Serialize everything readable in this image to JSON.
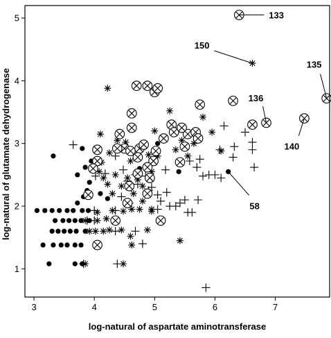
{
  "chart_data": {
    "type": "scatter",
    "title": "",
    "xlabel": "log-natural of aspartate aminotransferase",
    "ylabel": "log-natural of glutamate dehydrogenase",
    "xlim": [
      2.85,
      7.9
    ],
    "ylim": [
      0.55,
      5.2
    ],
    "xticks": [
      "3",
      "4",
      "5",
      "6",
      "7"
    ],
    "yticks": [
      "1",
      "2",
      "3",
      "4",
      "5"
    ],
    "grid": false,
    "legend": "none",
    "colors": {
      "marker": "#000000",
      "frame": "#000000",
      "background": "#ffffff"
    },
    "series": [
      {
        "marker": "dot",
        "points": [
          [
            3.05,
            1.93
          ],
          [
            3.18,
            1.93
          ],
          [
            3.3,
            1.93
          ],
          [
            3.42,
            1.93
          ],
          [
            3.55,
            1.93
          ],
          [
            3.65,
            1.93
          ],
          [
            3.8,
            1.93
          ],
          [
            3.9,
            1.93
          ],
          [
            3.35,
            1.77
          ],
          [
            3.48,
            1.77
          ],
          [
            3.58,
            1.77
          ],
          [
            3.68,
            1.77
          ],
          [
            3.78,
            1.77
          ],
          [
            3.92,
            1.77
          ],
          [
            3.3,
            1.6
          ],
          [
            3.4,
            1.6
          ],
          [
            3.5,
            1.6
          ],
          [
            3.6,
            1.6
          ],
          [
            3.7,
            1.6
          ],
          [
            3.85,
            1.6
          ],
          [
            3.15,
            1.38
          ],
          [
            3.32,
            1.38
          ],
          [
            3.45,
            1.38
          ],
          [
            3.55,
            1.38
          ],
          [
            3.68,
            1.38
          ],
          [
            3.78,
            1.38
          ],
          [
            3.25,
            1.08
          ],
          [
            3.68,
            1.08
          ],
          [
            3.8,
            1.08
          ],
          [
            3.72,
            2.05
          ],
          [
            3.82,
            2.15
          ],
          [
            3.88,
            2.25
          ],
          [
            3.92,
            2.38
          ],
          [
            3.72,
            2.5
          ],
          [
            3.85,
            2.62
          ],
          [
            3.95,
            2.72
          ],
          [
            3.32,
            2.8
          ],
          [
            3.8,
            2.92
          ],
          [
            4.1,
            2.2
          ],
          [
            4.22,
            2.12
          ],
          [
            4.88,
            2.18
          ],
          [
            4.75,
            2.6
          ],
          [
            5.05,
            2.9
          ],
          [
            5.05,
            3.0
          ],
          [
            5.4,
            2.55
          ],
          [
            6.22,
            2.55
          ]
        ]
      },
      {
        "marker": "star",
        "points": [
          [
            4.22,
            3.88
          ],
          [
            4.1,
            3.15
          ],
          [
            4.08,
            2.55
          ],
          [
            4.12,
            2.7
          ],
          [
            4.25,
            2.85
          ],
          [
            4.38,
            3.05
          ],
          [
            4.52,
            3.02
          ],
          [
            4.6,
            2.72
          ],
          [
            4.3,
            2.2
          ],
          [
            4.22,
            2.35
          ],
          [
            4.15,
            2.45
          ],
          [
            4.35,
            2.5
          ],
          [
            4.45,
            2.32
          ],
          [
            4.55,
            2.45
          ],
          [
            4.65,
            2.2
          ],
          [
            4.72,
            2.42
          ],
          [
            4.8,
            2.32
          ],
          [
            4.85,
            2.62
          ],
          [
            4.9,
            2.82
          ],
          [
            4.95,
            2.55
          ],
          [
            5.05,
            2.8
          ],
          [
            5.0,
            3.2
          ],
          [
            5.25,
            3.52
          ],
          [
            5.35,
            2.9
          ],
          [
            5.45,
            3.05
          ],
          [
            5.55,
            2.8
          ],
          [
            5.65,
            3.0
          ],
          [
            5.8,
            3.42
          ],
          [
            5.95,
            3.18
          ],
          [
            6.1,
            2.88
          ],
          [
            4.05,
            1.77
          ],
          [
            4.2,
            1.8
          ],
          [
            4.3,
            1.93
          ],
          [
            4.48,
            1.92
          ],
          [
            4.62,
            1.95
          ],
          [
            4.75,
            1.95
          ],
          [
            4.95,
            1.92
          ],
          [
            3.92,
            1.6
          ],
          [
            4.02,
            1.6
          ],
          [
            4.15,
            1.6
          ],
          [
            4.25,
            1.62
          ],
          [
            4.45,
            1.62
          ],
          [
            4.6,
            1.52
          ],
          [
            4.88,
            1.62
          ],
          [
            4.05,
            1.9
          ],
          [
            3.85,
            1.77
          ],
          [
            4.62,
            1.38
          ],
          [
            5.42,
            1.45
          ],
          [
            4.48,
            1.08
          ],
          [
            3.85,
            1.08
          ],
          [
            4.8,
            2.08
          ],
          [
            4.95,
            1.95
          ],
          [
            6.62,
            4.28
          ]
        ]
      },
      {
        "marker": "plus",
        "points": [
          [
            3.65,
            2.98
          ],
          [
            4.18,
            2.52
          ],
          [
            4.48,
            2.58
          ],
          [
            4.55,
            2.4
          ],
          [
            4.68,
            2.5
          ],
          [
            4.85,
            2.48
          ],
          [
            4.9,
            2.25
          ],
          [
            5.05,
            2.18
          ],
          [
            5.1,
            2.08
          ],
          [
            5.25,
            2.0
          ],
          [
            5.35,
            2.0
          ],
          [
            5.42,
            2.05
          ],
          [
            5.5,
            2.1
          ],
          [
            5.55,
            1.9
          ],
          [
            5.72,
            2.1
          ],
          [
            5.62,
            1.9
          ],
          [
            5.58,
            2.72
          ],
          [
            5.7,
            2.62
          ],
          [
            5.75,
            2.75
          ],
          [
            5.8,
            2.48
          ],
          [
            5.9,
            2.5
          ],
          [
            6.0,
            2.5
          ],
          [
            6.1,
            2.45
          ],
          [
            6.08,
            2.9
          ],
          [
            6.15,
            3.28
          ],
          [
            6.32,
            2.95
          ],
          [
            6.5,
            3.18
          ],
          [
            6.62,
            2.9
          ],
          [
            6.62,
            3.02
          ],
          [
            6.65,
            2.62
          ],
          [
            6.3,
            2.78
          ],
          [
            4.35,
            2.8
          ],
          [
            4.72,
            2.35
          ],
          [
            4.0,
            1.93
          ],
          [
            4.45,
            2.15
          ],
          [
            4.58,
            2.05
          ],
          [
            4.95,
            2.3
          ],
          [
            5.2,
            2.22
          ],
          [
            4.0,
            1.77
          ],
          [
            4.35,
            1.93
          ],
          [
            3.88,
            1.77
          ],
          [
            5.05,
            1.95
          ],
          [
            5.18,
            2.58
          ],
          [
            4.35,
            1.6
          ],
          [
            4.8,
            1.4
          ],
          [
            4.68,
            1.6
          ],
          [
            4.38,
            1.08
          ],
          [
            3.82,
            1.08
          ],
          [
            4.02,
            2.48
          ],
          [
            5.85,
            0.7
          ]
        ]
      },
      {
        "marker": "circle-x",
        "points": [
          [
            4.7,
            3.92
          ],
          [
            4.88,
            3.92
          ],
          [
            5.0,
            3.82
          ],
          [
            5.05,
            3.88
          ],
          [
            5.75,
            3.62
          ],
          [
            6.3,
            3.68
          ],
          [
            4.62,
            3.48
          ],
          [
            4.62,
            3.25
          ],
          [
            4.42,
            3.15
          ],
          [
            5.28,
            3.3
          ],
          [
            5.32,
            3.18
          ],
          [
            5.55,
            3.15
          ],
          [
            5.68,
            3.18
          ],
          [
            5.45,
            3.25
          ],
          [
            6.62,
            3.3
          ],
          [
            4.5,
            2.92
          ],
          [
            4.6,
            2.88
          ],
          [
            4.38,
            2.92
          ],
          [
            4.75,
            2.92
          ],
          [
            4.82,
            2.98
          ],
          [
            5.02,
            2.88
          ],
          [
            5.15,
            3.08
          ],
          [
            4.05,
            2.9
          ],
          [
            4.05,
            2.72
          ],
          [
            3.98,
            2.6
          ],
          [
            4.72,
            2.78
          ],
          [
            4.98,
            2.72
          ],
          [
            4.88,
            2.62
          ],
          [
            5.72,
            3.08
          ],
          [
            5.5,
            2.95
          ],
          [
            5.42,
            2.7
          ],
          [
            4.72,
            2.52
          ],
          [
            4.92,
            2.45
          ],
          [
            4.58,
            2.32
          ],
          [
            3.9,
            2.18
          ],
          [
            4.88,
            2.2
          ],
          [
            4.55,
            2.05
          ],
          [
            4.35,
            1.77
          ],
          [
            5.1,
            1.77
          ],
          [
            4.05,
            1.38
          ],
          [
            6.4,
            5.05
          ],
          [
            6.85,
            3.33
          ],
          [
            7.48,
            3.4
          ],
          [
            7.85,
            3.72
          ]
        ]
      }
    ],
    "annotations": [
      {
        "label": "133",
        "x": 6.4,
        "y": 5.05
      },
      {
        "label": "150",
        "x": 6.62,
        "y": 4.28
      },
      {
        "label": "135",
        "x": 7.85,
        "y": 3.72
      },
      {
        "label": "136",
        "x": 6.85,
        "y": 3.33
      },
      {
        "label": "140",
        "x": 7.48,
        "y": 3.4
      },
      {
        "label": "58",
        "x": 6.22,
        "y": 2.55
      }
    ]
  }
}
